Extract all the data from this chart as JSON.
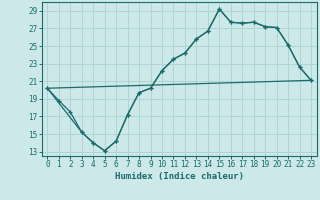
{
  "xlabel": "Humidex (Indice chaleur)",
  "xlim": [
    -0.5,
    23.5
  ],
  "ylim": [
    12.5,
    30
  ],
  "xticks": [
    0,
    1,
    2,
    3,
    4,
    5,
    6,
    7,
    8,
    9,
    10,
    11,
    12,
    13,
    14,
    15,
    16,
    17,
    18,
    19,
    20,
    21,
    22,
    23
  ],
  "yticks": [
    13,
    15,
    17,
    19,
    21,
    23,
    25,
    27,
    29
  ],
  "bg_color": "#cce8e8",
  "grid_color": "#aed4d4",
  "line_color": "#1a6b6b",
  "line1_x": [
    0,
    1,
    2,
    3,
    4,
    5,
    6,
    7,
    8,
    9,
    10,
    11,
    12,
    13,
    14,
    15,
    16,
    17,
    18,
    19,
    20,
    21,
    22,
    23
  ],
  "line1_y": [
    20.2,
    18.8,
    17.5,
    15.2,
    14.0,
    13.1,
    14.2,
    17.2,
    19.7,
    20.2,
    22.2,
    23.5,
    24.2,
    25.8,
    26.7,
    29.2,
    27.7,
    27.6,
    27.7,
    27.2,
    27.1,
    25.1,
    22.6,
    21.1
  ],
  "line2_x": [
    0,
    3,
    4,
    5,
    6,
    7,
    8,
    9,
    10,
    11,
    12,
    13,
    14,
    15,
    16,
    17,
    18,
    19,
    20,
    21,
    22,
    23
  ],
  "line2_y": [
    20.2,
    15.2,
    14.0,
    13.1,
    14.2,
    17.2,
    19.7,
    20.2,
    22.2,
    23.5,
    24.2,
    25.8,
    26.7,
    29.2,
    27.7,
    27.6,
    27.7,
    27.2,
    27.1,
    25.1,
    22.6,
    21.1
  ],
  "line3_x": [
    0,
    23
  ],
  "line3_y": [
    20.2,
    21.1
  ]
}
